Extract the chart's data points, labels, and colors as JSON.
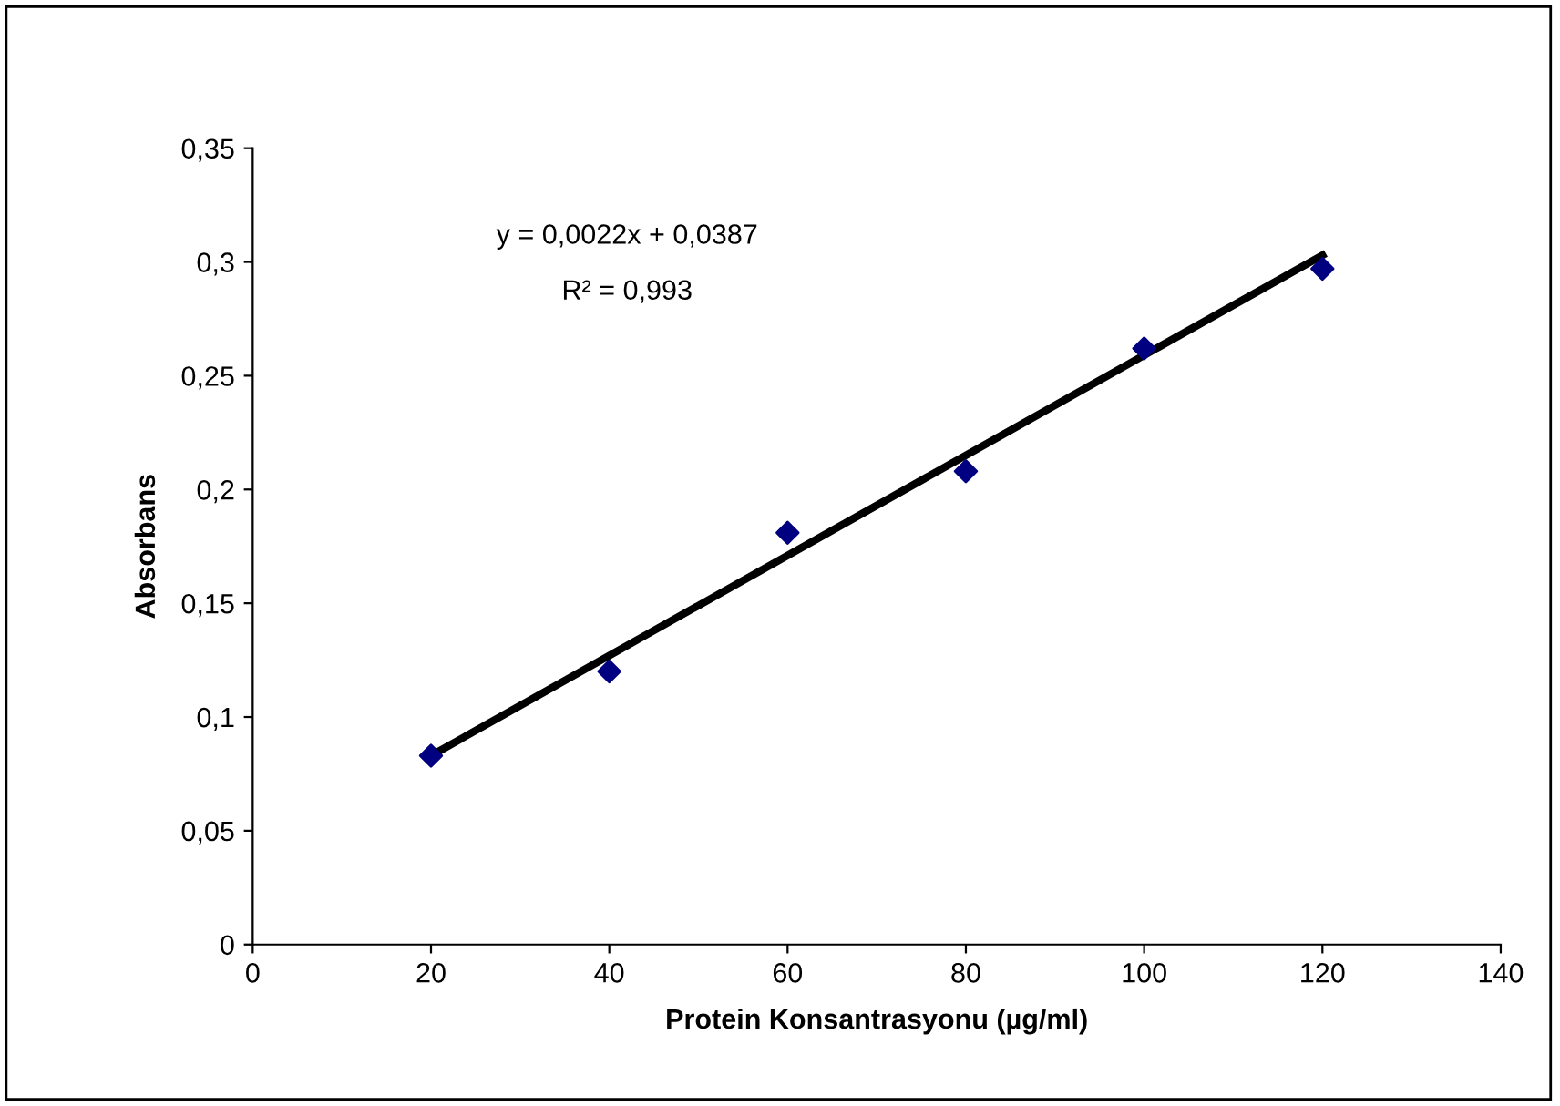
{
  "chart_data": {
    "type": "scatter",
    "xlabel": "Protein Konsantrasyonu (µg/ml)",
    "ylabel": "Absorbans",
    "x": [
      20,
      40,
      60,
      80,
      100,
      120
    ],
    "series": [
      {
        "color": "#000080",
        "marker": "diamond",
        "values": [
          0.083,
          0.12,
          0.181,
          0.208,
          0.262,
          0.297
        ]
      },
      {
        "type": "line",
        "color": "#000000",
        "marker": "none",
        "line_style": "solid",
        "x": [
          20,
          120
        ],
        "values": [
          0.083,
          0.303
        ]
      }
    ],
    "annotations": [
      "y = 0,0022x + 0,0387",
      "R² = 0,993"
    ],
    "xlim": [
      0,
      140
    ],
    "xticks": [
      0,
      20,
      40,
      60,
      80,
      100,
      120,
      140
    ],
    "ylim": [
      0,
      0.35
    ],
    "yticks": [
      0,
      {
        "value": 0.05,
        "label": "0,05"
      },
      {
        "value": 0.1,
        "label": "0,1"
      },
      {
        "value": 0.15,
        "label": "0,15"
      },
      {
        "value": 0.2,
        "label": "0,2"
      },
      {
        "value": 0.25,
        "label": "0,25"
      },
      {
        "value": 0.3,
        "label": "0,3"
      },
      {
        "value": 0.35,
        "label": "0,35"
      }
    ],
    "grid": false,
    "legend": false
  }
}
